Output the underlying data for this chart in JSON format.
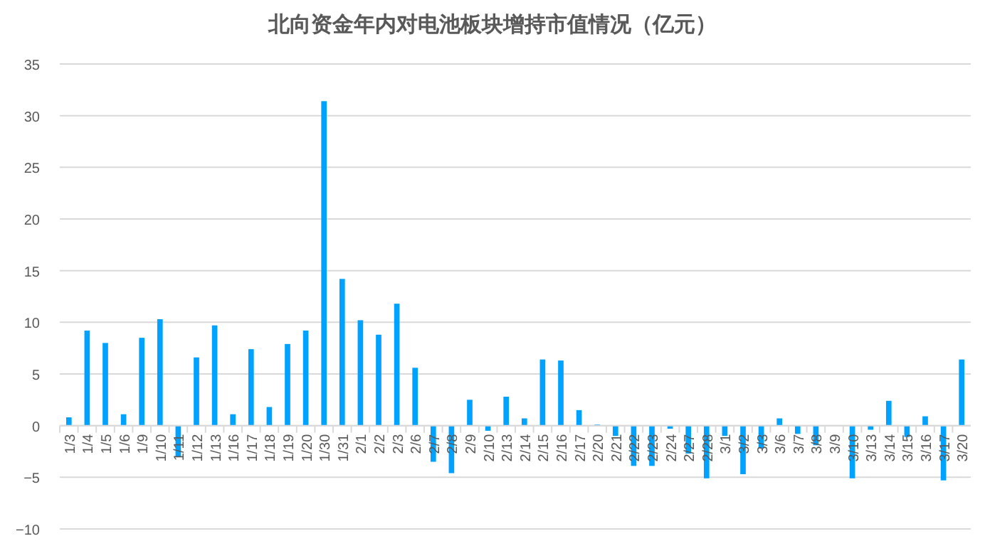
{
  "chart_data": {
    "type": "bar",
    "title": "北向资金年内对电池板块增持市值情况（亿元）",
    "categories": [
      "1/3",
      "1/4",
      "1/5",
      "1/6",
      "1/9",
      "1/10",
      "1/11",
      "1/12",
      "1/13",
      "1/16",
      "1/17",
      "1/18",
      "1/19",
      "1/20",
      "1/30",
      "1/31",
      "2/1",
      "2/2",
      "2/3",
      "2/6",
      "2/7",
      "2/8",
      "2/9",
      "2/10",
      "2/13",
      "2/14",
      "2/15",
      "2/16",
      "2/17",
      "2/20",
      "2/21",
      "2/22",
      "2/23",
      "2/24",
      "2/27",
      "2/28",
      "3/1",
      "3/2",
      "3/3",
      "3/6",
      "3/7",
      "3/8",
      "3/9",
      "3/10",
      "3/13",
      "3/14",
      "3/15",
      "3/16",
      "3/17",
      "3/20"
    ],
    "values": [
      0.8,
      9.2,
      8.0,
      1.1,
      8.5,
      10.3,
      -3.0,
      6.6,
      9.7,
      1.1,
      7.4,
      1.8,
      7.9,
      9.2,
      31.4,
      14.2,
      10.2,
      8.8,
      11.8,
      5.6,
      -3.5,
      -4.6,
      2.5,
      -0.5,
      2.8,
      0.7,
      6.4,
      6.3,
      1.5,
      0.1,
      -1.0,
      -3.9,
      -3.9,
      -0.3,
      -2.7,
      -5.1,
      -1.0,
      -4.7,
      -2.2,
      0.7,
      -0.8,
      -1.9,
      0,
      -5.1,
      -0.4,
      2.4,
      -1.1,
      0.9,
      -5.3,
      6.4
    ],
    "color": "#00a2ff",
    "ylim": [
      -10,
      35
    ],
    "yticks": [
      -10,
      -5,
      0,
      5,
      10,
      15,
      20,
      25,
      30,
      35
    ],
    "grid": "y"
  }
}
